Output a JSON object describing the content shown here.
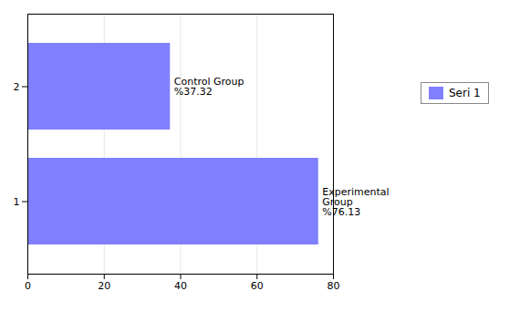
{
  "chart_data": {
    "type": "bar",
    "orientation": "horizontal",
    "categories": [
      "1",
      "2"
    ],
    "series": [
      {
        "name": "Seri 1",
        "color": "#8080FF",
        "values": [
          76.13,
          37.32
        ],
        "value_labels": [
          "Experimental\nGroup\n%76.13",
          "Control Group\n%37.32"
        ]
      }
    ],
    "xlim": [
      0,
      80
    ],
    "xticks": [
      0,
      20,
      40,
      60,
      80
    ],
    "grid": true,
    "legend": "right",
    "data_labels": true
  }
}
